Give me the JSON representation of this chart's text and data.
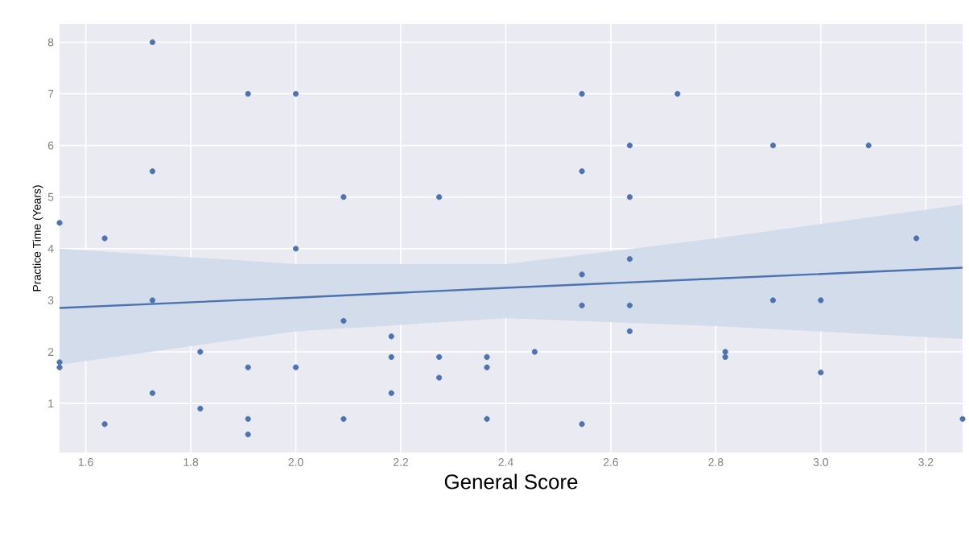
{
  "chart_data": {
    "type": "scatter",
    "xlabel": "General Score",
    "ylabel": "Practice Time (Years)",
    "xlim": [
      1.55,
      3.27
    ],
    "ylim": [
      0.05,
      8.35
    ],
    "xticks": [
      1.6,
      1.8,
      {
        "value": 2.0,
        "label": "2.0"
      },
      2.2,
      2.4,
      2.6,
      2.8,
      {
        "value": 3.0,
        "label": "3.0"
      },
      3.2
    ],
    "yticks": [
      1,
      2,
      3,
      4,
      5,
      6,
      7,
      8
    ],
    "grid": true,
    "marker": "circle",
    "series": [
      {
        "color": "#4c72b0",
        "x": [
          1.55,
          1.55,
          1.55,
          1.636,
          1.636,
          1.727,
          1.727,
          1.727,
          1.727,
          1.818,
          1.818,
          1.909,
          1.909,
          1.909,
          1.909,
          2.0,
          2.0,
          2.0,
          2.091,
          2.091,
          2.091,
          2.182,
          2.182,
          2.182,
          2.273,
          2.273,
          2.273,
          2.364,
          2.364,
          2.364,
          2.455,
          2.545,
          2.545,
          2.545,
          2.545,
          2.545,
          2.636,
          2.636,
          2.636,
          2.636,
          2.636,
          2.727,
          2.818,
          2.818,
          2.909,
          2.909,
          3.0,
          3.0,
          3.091,
          3.182,
          3.27
        ],
        "values": [
          4.5,
          1.8,
          1.7,
          4.2,
          0.6,
          8,
          5.5,
          3.0,
          1.2,
          2.0,
          0.9,
          7,
          1.7,
          0.7,
          0.4,
          7,
          4.0,
          1.7,
          5,
          2.6,
          0.7,
          2.3,
          1.9,
          1.2,
          5,
          1.9,
          1.5,
          1.9,
          1.7,
          0.7,
          2.0,
          7,
          5.5,
          3.5,
          2.9,
          0.6,
          6,
          5,
          3.8,
          2.9,
          2.4,
          7,
          2.0,
          1.9,
          6,
          3.0,
          3.0,
          1.6,
          6,
          4.2,
          0.7
        ]
      },
      {
        "type": "line",
        "marker": "none",
        "color": "#4c72b0",
        "x": [
          1.55,
          2.0,
          2.4,
          2.8,
          3.27
        ],
        "values": [
          2.85,
          3.05,
          3.24,
          3.42,
          3.63
        ],
        "lower": [
          1.75,
          2.4,
          2.65,
          2.5,
          2.25
        ],
        "upper": [
          4.0,
          3.7,
          3.7,
          4.2,
          4.85
        ]
      }
    ]
  }
}
